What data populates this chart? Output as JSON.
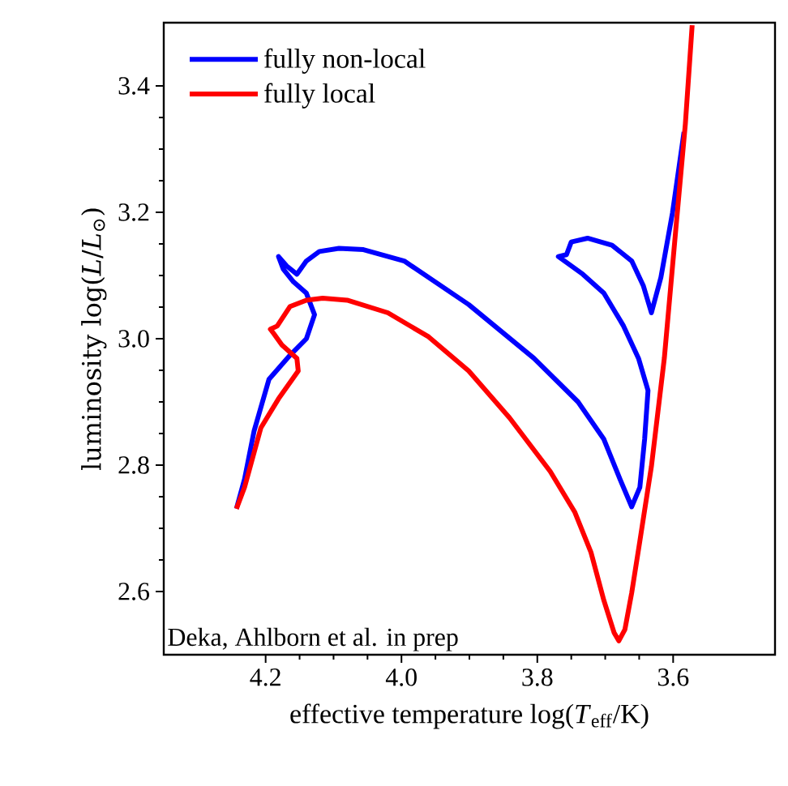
{
  "chart_data": {
    "type": "line",
    "xlabel": "effective temperature log(*T*$_{eff}$/K)",
    "ylabel": "luminosity log(*L*/*L*$_{⊙}$)",
    "xlim": [
      4.35,
      3.45
    ],
    "ylim": [
      2.5,
      3.5
    ],
    "xticks": [
      4.2,
      {
        "value": 4.0,
        "label": "4.0"
      },
      3.8,
      3.6
    ],
    "yticks": [
      2.6,
      2.8,
      {
        "value": 3.0,
        "label": "3.0"
      },
      3.2,
      3.4
    ],
    "grid": false,
    "legend": "top left",
    "marker": "none",
    "line_style": "solid",
    "annotations": [
      "Deka, Ahlborn et al. in prep"
    ],
    "series": [
      {
        "name": "fully non-local",
        "color": "#0000ff",
        "x": [
          4.243,
          4.231,
          4.217,
          4.195,
          4.164,
          4.14,
          4.128,
          4.14,
          4.159,
          4.174,
          4.181,
          4.169,
          4.154,
          4.14,
          4.121,
          4.092,
          4.056,
          3.996,
          3.901,
          3.805,
          3.74,
          3.702,
          3.678,
          3.661,
          3.649,
          3.642,
          3.637,
          3.651,
          3.673,
          3.702,
          3.733,
          3.769,
          3.757,
          3.75,
          3.726,
          3.69,
          3.661,
          3.644,
          3.632,
          3.618,
          3.601,
          3.584
        ],
        "values": [
          2.731,
          2.778,
          2.854,
          2.936,
          2.974,
          3.0,
          3.038,
          3.072,
          3.09,
          3.11,
          3.13,
          3.115,
          3.102,
          3.123,
          3.138,
          3.143,
          3.141,
          3.123,
          3.054,
          2.969,
          2.9,
          2.841,
          2.777,
          2.734,
          2.765,
          2.841,
          2.918,
          2.969,
          3.02,
          3.072,
          3.102,
          3.13,
          3.133,
          3.153,
          3.159,
          3.148,
          3.123,
          3.084,
          3.041,
          3.097,
          3.199,
          3.327
        ]
      },
      {
        "name": "fully local",
        "color": "#ff0000",
        "x": [
          4.243,
          4.231,
          4.207,
          4.181,
          4.152,
          4.154,
          4.176,
          4.188,
          4.193,
          4.183,
          4.164,
          4.14,
          4.116,
          4.08,
          4.02,
          3.96,
          3.901,
          3.841,
          3.781,
          3.745,
          3.721,
          3.702,
          3.687,
          3.68,
          3.671,
          3.661,
          3.649,
          3.632,
          3.613,
          3.596,
          3.582,
          3.572
        ],
        "values": [
          2.731,
          2.765,
          2.859,
          2.905,
          2.949,
          2.969,
          2.99,
          3.008,
          3.015,
          3.02,
          3.051,
          3.061,
          3.064,
          3.061,
          3.041,
          3.003,
          2.949,
          2.875,
          2.79,
          2.726,
          2.662,
          2.586,
          2.535,
          2.522,
          2.54,
          2.598,
          2.68,
          2.798,
          2.969,
          3.174,
          3.34,
          3.496
        ]
      }
    ]
  }
}
